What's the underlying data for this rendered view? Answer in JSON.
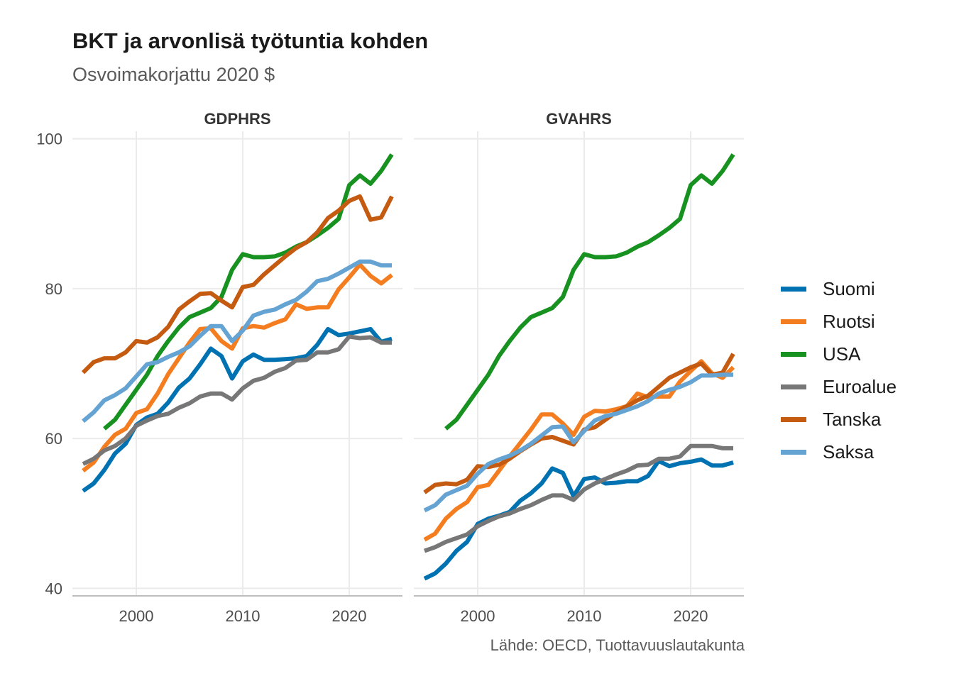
{
  "title": "BKT ja arvonlisä työtuntia kohden",
  "subtitle": "Osvoimakorjattu 2020 $",
  "caption": "Lähde: OECD, Tuottavuuslautakunta",
  "chart_data": {
    "type": "line",
    "facets": [
      "GDPHRS",
      "GVAHRS"
    ],
    "x": [
      1995,
      1996,
      1997,
      1998,
      1999,
      2000,
      2001,
      2002,
      2003,
      2004,
      2005,
      2006,
      2007,
      2008,
      2009,
      2010,
      2011,
      2012,
      2013,
      2014,
      2015,
      2016,
      2017,
      2018,
      2019,
      2020,
      2021,
      2022,
      2023,
      2024
    ],
    "xlim": [
      1994,
      2025
    ],
    "ylim": [
      39,
      101
    ],
    "x_ticks": [
      2000,
      2010,
      2020
    ],
    "y_ticks": [
      40,
      60,
      80,
      100
    ],
    "grid": true,
    "legend_position": "right",
    "series": [
      {
        "name": "Suomi",
        "color": "#0072b2",
        "GDPHRS": [
          53,
          54,
          55.8,
          58,
          59.3,
          61.8,
          62.8,
          63.3,
          64.8,
          66.8,
          68,
          69.9,
          72,
          71,
          68,
          70.3,
          71.2,
          70.5,
          70.5,
          70.6,
          70.7,
          71,
          72.5,
          74.6,
          73.8,
          74,
          74.3,
          74.6,
          72.9,
          73.3
        ],
        "GVAHRS": [
          41.3,
          42,
          43.3,
          45,
          46.2,
          48.6,
          49.3,
          49.7,
          50.2,
          51.7,
          52.7,
          54,
          56,
          55.4,
          52.3,
          54.6,
          54.8,
          54,
          54.1,
          54.3,
          54.3,
          55,
          57,
          56.3,
          56.7,
          56.9,
          57.2,
          56.4,
          56.4,
          56.8
        ]
      },
      {
        "name": "Ruotsi",
        "color": "#f47d20",
        "GDPHRS": [
          55.7,
          56.8,
          58.9,
          60.5,
          61.3,
          63.4,
          63.9,
          66,
          68.6,
          70.7,
          72.8,
          74.6,
          74.7,
          73,
          72,
          74.7,
          75,
          74.8,
          75.4,
          75.9,
          77.9,
          77.3,
          77.5,
          77.5,
          79.9,
          81.5,
          83.2,
          81.7,
          80.7,
          81.8
        ],
        "GVAHRS": [
          46.5,
          47.3,
          49.3,
          50.6,
          51.5,
          53.5,
          53.8,
          55.7,
          57.6,
          59.4,
          61.2,
          63.2,
          63.2,
          62,
          60.5,
          62.9,
          63.7,
          63.6,
          63.9,
          64.3,
          66,
          65.5,
          65.6,
          65.6,
          67.6,
          69,
          70.3,
          68.7,
          68.1,
          69.5
        ]
      },
      {
        "name": "USA",
        "color": "#179220",
        "GDPHRS": [
          null,
          null,
          61.3,
          62.5,
          64.5,
          66.5,
          68.5,
          71,
          73,
          74.8,
          76.2,
          76.8,
          77.4,
          78.9,
          82.5,
          84.6,
          84.2,
          84.2,
          84.3,
          84.8,
          85.6,
          86.2,
          87.1,
          88.1,
          89.3,
          93.8,
          95.1,
          94,
          95.7,
          97.9
        ],
        "GVAHRS": [
          null,
          null,
          61.3,
          62.5,
          64.5,
          66.5,
          68.5,
          71,
          73,
          74.8,
          76.2,
          76.8,
          77.4,
          78.9,
          82.5,
          84.6,
          84.2,
          84.2,
          84.3,
          84.8,
          85.6,
          86.2,
          87.1,
          88.1,
          89.3,
          93.8,
          95.1,
          94,
          95.7,
          97.9
        ]
      },
      {
        "name": "Euroalue",
        "color": "#777777",
        "GDPHRS": [
          56.6,
          57.3,
          58.4,
          59,
          60,
          61.7,
          62.4,
          63,
          63.3,
          64.1,
          64.7,
          65.6,
          66,
          66,
          65.2,
          66.7,
          67.7,
          68.1,
          68.9,
          69.4,
          70.4,
          70.5,
          71.5,
          71.5,
          71.9,
          73.6,
          73.4,
          73.5,
          72.8,
          72.8
        ],
        "GVAHRS": [
          45,
          45.5,
          46.2,
          46.7,
          47.2,
          48.3,
          49,
          49.6,
          50,
          50.6,
          51.1,
          51.8,
          52.4,
          52.4,
          51.8,
          53.2,
          54,
          54.6,
          55.2,
          55.7,
          56.4,
          56.5,
          57.3,
          57.3,
          57.6,
          59,
          59,
          59,
          58.7,
          58.7
        ]
      },
      {
        "name": "Tanska",
        "color": "#c55a11",
        "GDPHRS": [
          68.8,
          70.2,
          70.7,
          70.7,
          71.5,
          73,
          72.8,
          73.5,
          74.9,
          77.2,
          78.3,
          79.3,
          79.4,
          78.4,
          77.5,
          80.2,
          80.5,
          81.9,
          83.1,
          84.3,
          85.4,
          86.2,
          87.5,
          89.4,
          90.4,
          91.7,
          92.3,
          89.2,
          89.5,
          92.3
        ],
        "GVAHRS": [
          52.8,
          53.8,
          54,
          53.9,
          54.5,
          56.3,
          56.2,
          56.5,
          57.3,
          58.3,
          59.2,
          60,
          60.2,
          59.7,
          59.2,
          61.2,
          61.5,
          62.5,
          63.5,
          64.3,
          65.1,
          65.7,
          66.9,
          68.1,
          68.8,
          69.5,
          70,
          68.5,
          68.8,
          71.3
        ]
      },
      {
        "name": "Saksa",
        "color": "#65a3d2",
        "GDPHRS": [
          62.3,
          63.5,
          65.1,
          65.8,
          66.7,
          68.3,
          69.9,
          70.2,
          70.9,
          71.5,
          72.3,
          73.7,
          75,
          75,
          73,
          74.4,
          76.4,
          76.9,
          77.2,
          77.9,
          78.5,
          79.6,
          81,
          81.3,
          82,
          82.8,
          83.6,
          83.6,
          83.1,
          83.1
        ],
        "GVAHRS": [
          50.4,
          51.1,
          52.5,
          53.1,
          53.7,
          55.3,
          56.6,
          57.2,
          57.7,
          58.4,
          59.3,
          60.4,
          61.5,
          61.6,
          59.5,
          61,
          62.4,
          63,
          63.3,
          63.8,
          64.3,
          65,
          66,
          66.5,
          66.9,
          67.5,
          68.4,
          68.4,
          68.5,
          68.5
        ]
      }
    ]
  }
}
